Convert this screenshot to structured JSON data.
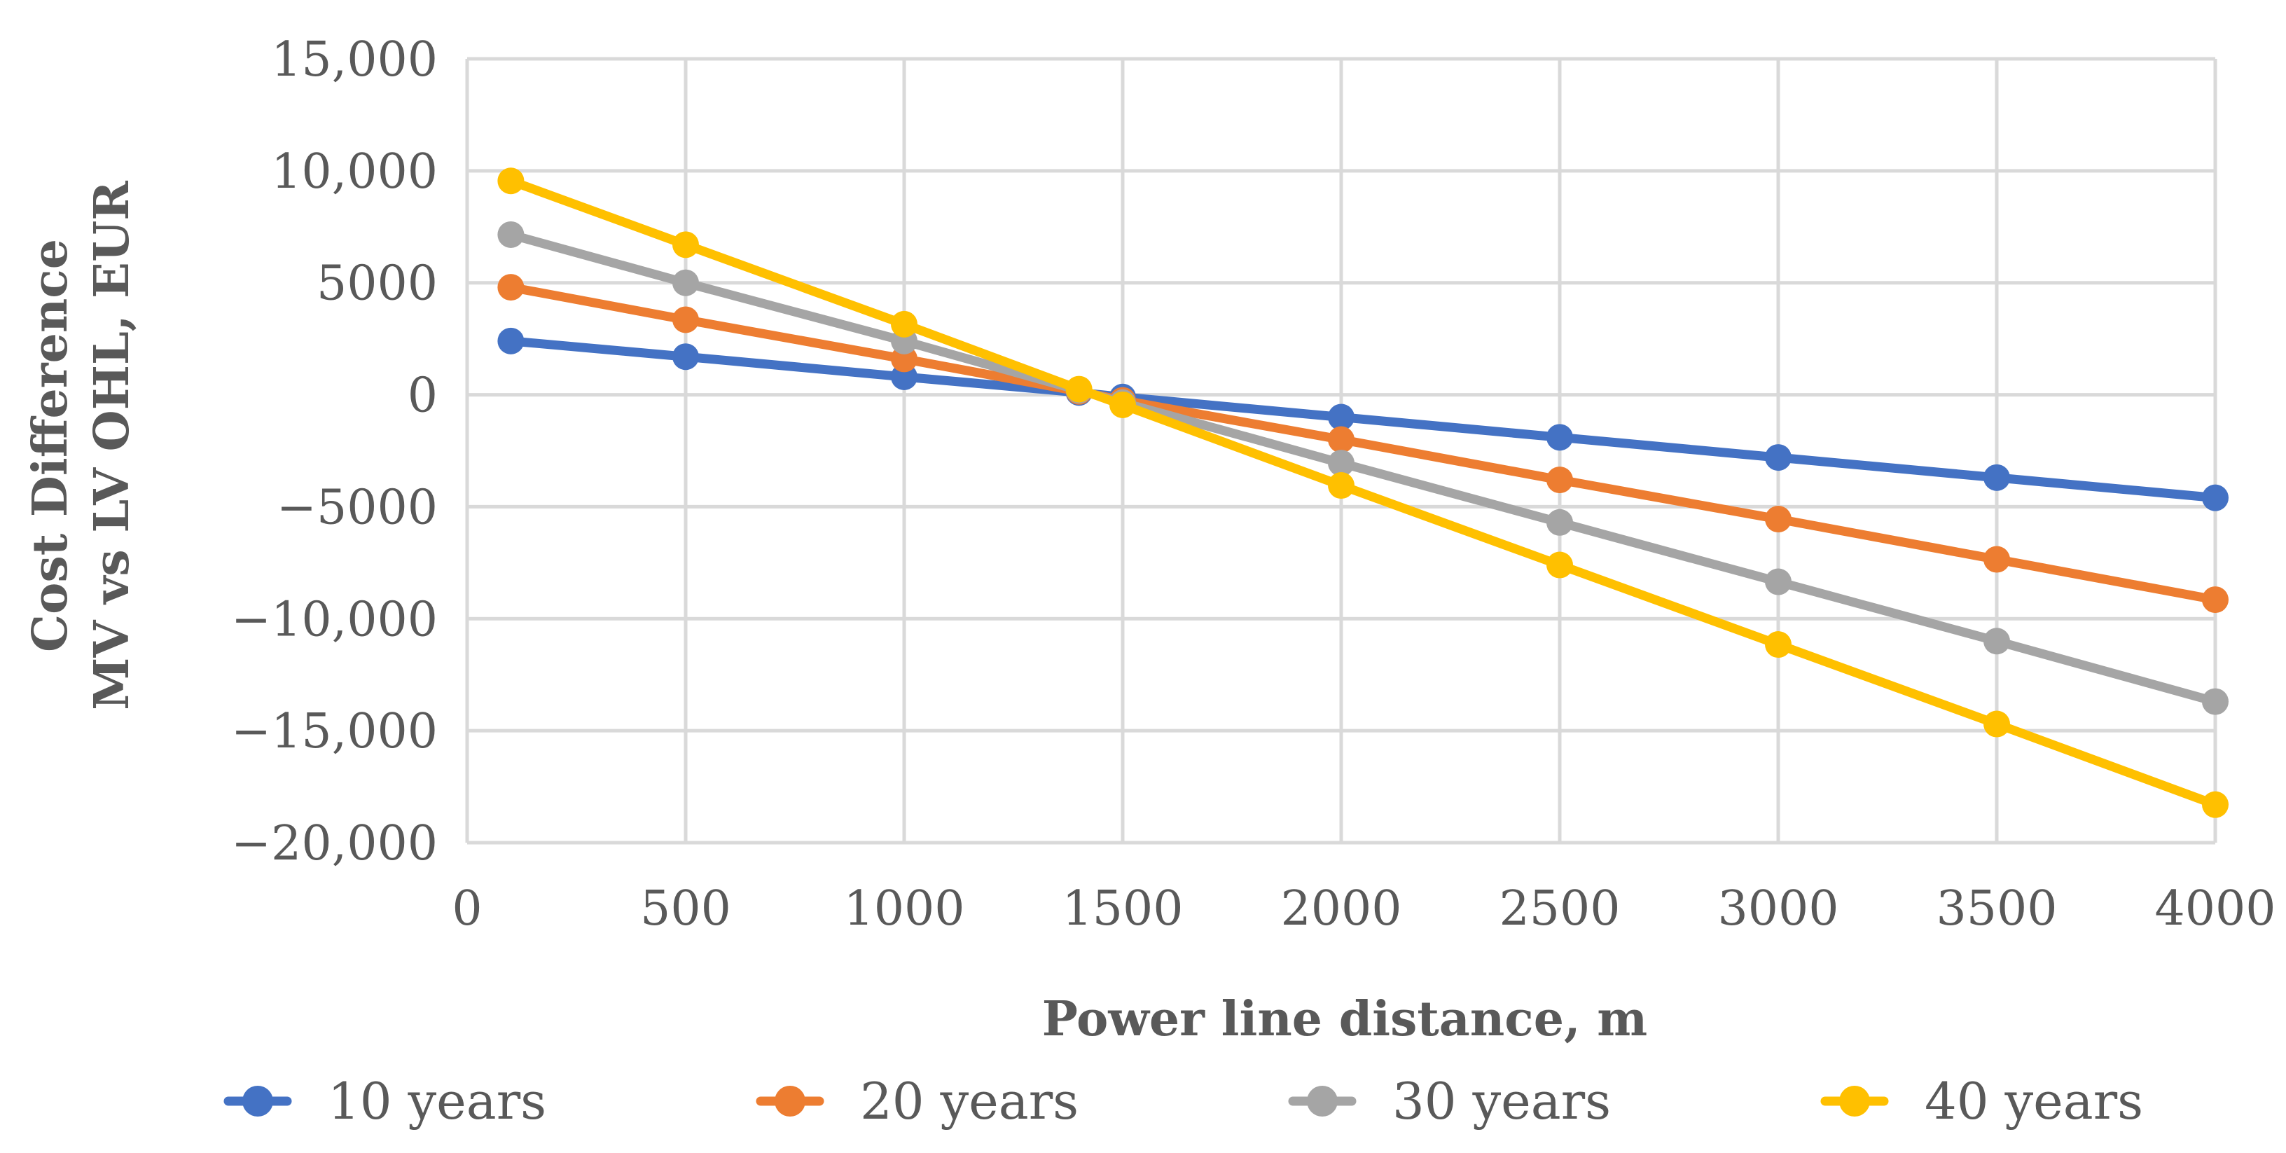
{
  "chart_data": {
    "type": "line",
    "title": "",
    "xlabel": "Power line distance, m",
    "ylabel_lines": [
      "Cost Difference",
      "MV vs LV OHL,  EUR"
    ],
    "xlim": [
      0,
      4000
    ],
    "ylim": [
      -20000,
      15000
    ],
    "x_ticks": [
      0,
      500,
      1000,
      1500,
      2000,
      2500,
      3000,
      3500,
      4000
    ],
    "x_tick_labels": [
      "0",
      "500",
      "1000",
      "1500",
      "2000",
      "2500",
      "3000",
      "3500",
      "4000"
    ],
    "y_ticks": [
      15000,
      10000,
      5000,
      0,
      -5000,
      -10000,
      -15000,
      -20000
    ],
    "y_tick_labels": [
      "15,000",
      "10,000",
      "5000",
      "0",
      "−5000",
      "−10,000",
      "−15,000",
      "−20,000"
    ],
    "grid": true,
    "legend_position": "bottom",
    "x": [
      100,
      500,
      1000,
      1400,
      1500,
      2000,
      2500,
      3000,
      3500,
      4000
    ],
    "series": [
      {
        "name": "10 years",
        "color": "#4472C4",
        "values": [
          2400,
          1700,
          800,
          100,
          -100,
          -1000,
          -1900,
          -2800,
          -3700,
          -4600
        ]
      },
      {
        "name": "20 years",
        "color": "#ED7D31",
        "values": [
          4800,
          3350,
          1600,
          150,
          -250,
          -2000,
          -3800,
          -5550,
          -7350,
          -9150
        ]
      },
      {
        "name": "30 years",
        "color": "#A5A5A5",
        "values": [
          7150,
          5000,
          2400,
          200,
          -350,
          -3050,
          -5700,
          -8350,
          -11000,
          -13700
        ]
      },
      {
        "name": "40 years",
        "color": "#FFC000",
        "values": [
          9550,
          6700,
          3150,
          250,
          -450,
          -4050,
          -7600,
          -11150,
          -14700,
          -18300
        ]
      }
    ]
  }
}
